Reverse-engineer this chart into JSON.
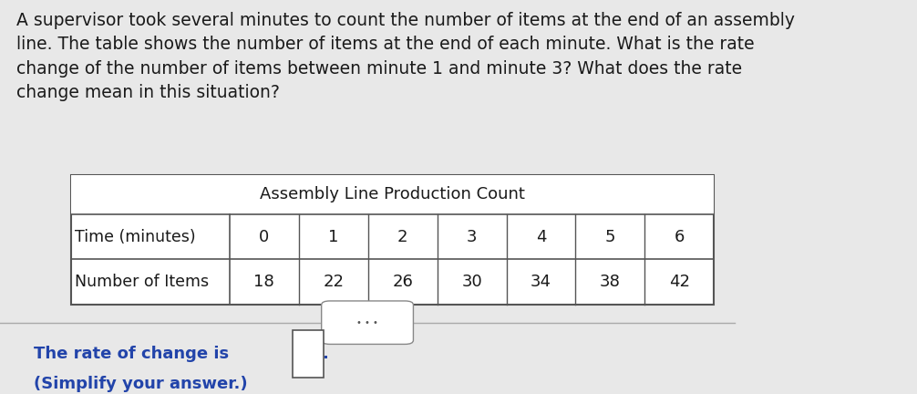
{
  "paragraph_text": "A supervisor took several minutes to count the number of items at the end of an assembly\nline. The table shows the number of items at the end of each minute. What is the rate\nchange of the number of items between minute 1 and minute 3? What does the rate\nchange mean in this situation?",
  "table_title": "Assembly Line Production Count",
  "row1_label": "Time (minutes)",
  "row2_label": "Number of Items",
  "time_values": [
    "0",
    "1",
    "2",
    "3",
    "4",
    "5",
    "6"
  ],
  "item_values": [
    "18",
    "22",
    "26",
    "30",
    "34",
    "38",
    "42"
  ],
  "footer_text1": "The rate of change is",
  "footer_text2": ".",
  "footer_text3": "(Simplify your answer.)",
  "bg_color": "#e8e8e8",
  "table_bg": "#f0f0f0",
  "header_bg": "#ffffff",
  "text_color": "#1a1a1a",
  "border_color": "#555555",
  "title_color": "#1a1a1a",
  "font_size_paragraph": 13.5,
  "font_size_table": 13,
  "font_size_footer": 13
}
